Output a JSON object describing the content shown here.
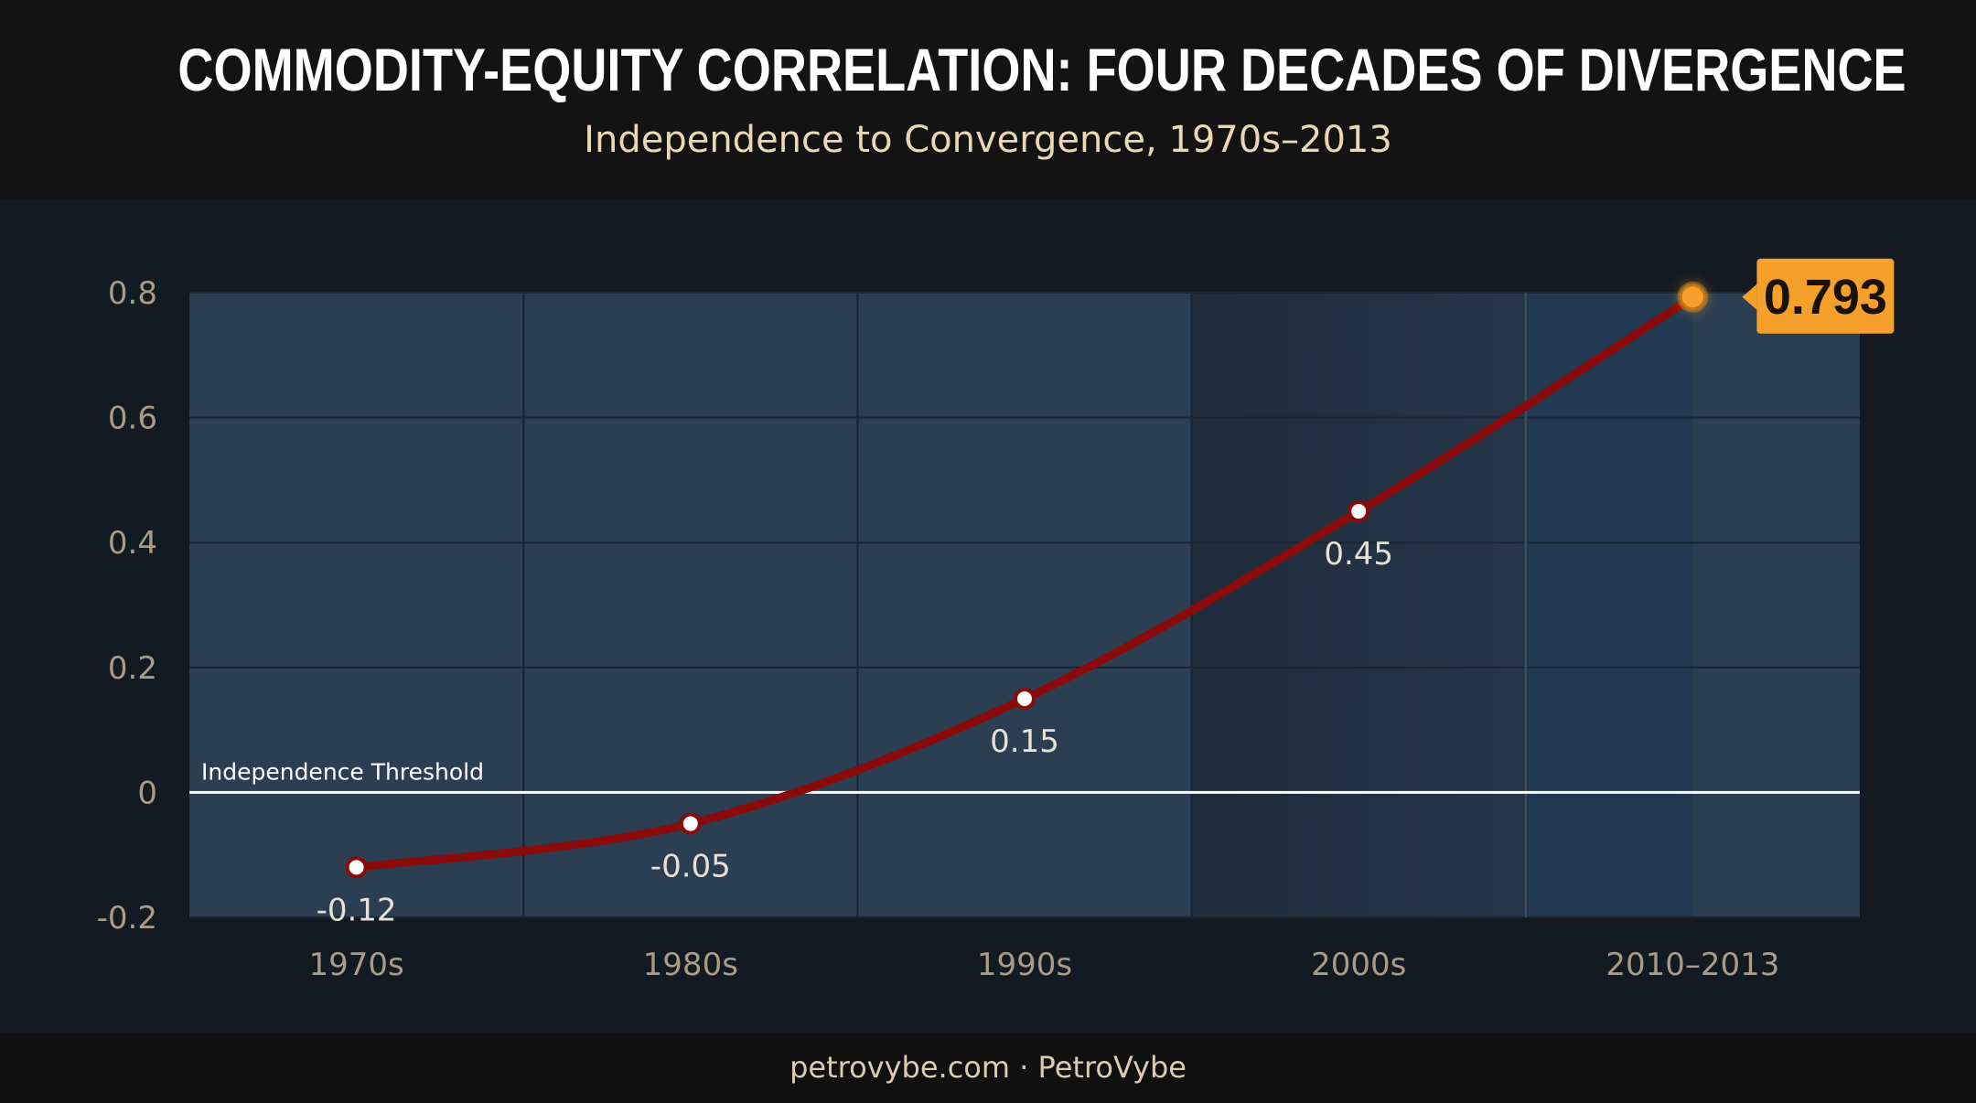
{
  "header": {
    "title": "COMMODITY-EQUITY CORRELATION: FOUR DECADES OF DIVERGENCE",
    "subtitle": "Independence to Convergence, 1970s–2013"
  },
  "footer": {
    "text": "petrovybe.com · PetroVybe"
  },
  "colors": {
    "line": "#8b0a0a",
    "highlight": "#f5a02a",
    "plot_bg": "#2c3e52",
    "threshold": "#ffffff"
  },
  "chart_data": {
    "type": "line",
    "title": "COMMODITY-EQUITY CORRELATION: FOUR DECADES OF DIVERGENCE",
    "subtitle": "Independence to Convergence, 1970s–2013",
    "xlabel": "",
    "ylabel": "",
    "categories": [
      "1970s",
      "1980s",
      "1990s",
      "2000s",
      "2010–2013"
    ],
    "series": [
      {
        "values": [
          -0.12,
          -0.05,
          0.15,
          0.45,
          0.793
        ],
        "labels": [
          "-0.12",
          "-0.05",
          "0.15",
          "0.45",
          "0.793"
        ]
      }
    ],
    "ylim": [
      -0.2,
      0.8
    ],
    "yticks": [
      -0.2,
      0,
      0.2,
      0.4,
      0.6,
      0.8
    ],
    "ytick_labels": [
      "-0.2",
      "0",
      "0.2",
      "0.4",
      "0.6",
      "0.8"
    ],
    "reference_line": {
      "y": 0,
      "label": "Independence Threshold"
    },
    "highlight_last": true,
    "grid": true
  }
}
